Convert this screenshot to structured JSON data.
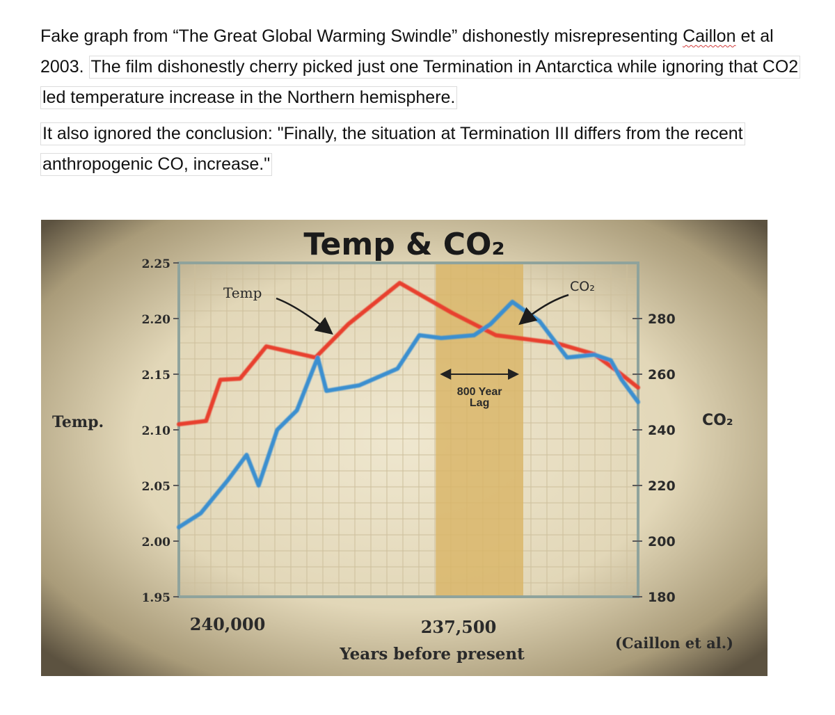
{
  "document": {
    "para1_intro": "Fake graph from “The Great Global Warming Swindle” dishonestly misrepresenting ",
    "para1_citation_word": "Caillon",
    "para1_after_citation": " et al 2003. ",
    "para1_highlighted": "The film dishonestly cherry picked just one Termination in Antarctica while ignoring that CO2 led temperature increase in the Northern hemisphere.",
    "para2_highlighted": "It also ignored the conclusion: \"Finally, the situation at Termination III differs from the recent anthropogenic CO, increase.\""
  },
  "chart_data": {
    "type": "line",
    "title": "Temp & CO₂",
    "xlabel": "Years before present",
    "x_tick_labels": [
      "240,000",
      "237,500"
    ],
    "ylabel_left": "Temp.",
    "ylabel_right": "CO₂",
    "source_note": "(Caillon et al.)",
    "left_axis": {
      "ylim": [
        1.95,
        2.25
      ],
      "ticks": [
        2.25,
        2.2,
        2.15,
        2.1,
        2.05,
        2.0,
        1.95
      ],
      "tick_labels": [
        "2.25",
        "2.20",
        "2.15",
        "2.10",
        "2.05",
        "2.00",
        "1.95"
      ]
    },
    "right_axis": {
      "ylim": [
        180,
        300
      ],
      "ticks": [
        280,
        260,
        240,
        220,
        200,
        180
      ],
      "tick_labels": [
        "280",
        "260",
        "240",
        "220",
        "200",
        "180"
      ]
    },
    "xlim": [
      240500,
      236300
    ],
    "grid": true,
    "shaded_region": {
      "x": [
        238150,
        237350
      ],
      "label_line1": "800 Year",
      "label_line2": "Lag"
    },
    "series": [
      {
        "name": "Temp",
        "axis": "left",
        "color": "#e8412e",
        "points": [
          [
            240500,
            2.105
          ],
          [
            240250,
            2.108
          ],
          [
            240120,
            2.145
          ],
          [
            239940,
            2.146
          ],
          [
            239700,
            2.175
          ],
          [
            239250,
            2.165
          ],
          [
            238950,
            2.195
          ],
          [
            238480,
            2.232
          ],
          [
            238000,
            2.205
          ],
          [
            237600,
            2.185
          ],
          [
            237050,
            2.178
          ],
          [
            236700,
            2.168
          ],
          [
            236480,
            2.152
          ],
          [
            236300,
            2.138
          ]
        ]
      },
      {
        "name": "CO₂",
        "axis": "right",
        "color": "#3a8fd0",
        "points": [
          [
            240500,
            205
          ],
          [
            240300,
            210
          ],
          [
            240050,
            222
          ],
          [
            239880,
            231
          ],
          [
            239770,
            220
          ],
          [
            239600,
            240
          ],
          [
            239420,
            247
          ],
          [
            239230,
            266
          ],
          [
            239150,
            254
          ],
          [
            238850,
            256
          ],
          [
            238500,
            262
          ],
          [
            238300,
            274
          ],
          [
            238100,
            273
          ],
          [
            237800,
            274
          ],
          [
            237650,
            278
          ],
          [
            237450,
            286
          ],
          [
            237200,
            279
          ],
          [
            236950,
            266
          ],
          [
            236700,
            267
          ],
          [
            236550,
            265
          ],
          [
            236450,
            258
          ],
          [
            236300,
            250
          ]
        ]
      }
    ],
    "annotations": [
      {
        "text": "Temp",
        "points_to": "Temp"
      },
      {
        "text": "CO₂",
        "points_to": "CO₂"
      }
    ]
  }
}
